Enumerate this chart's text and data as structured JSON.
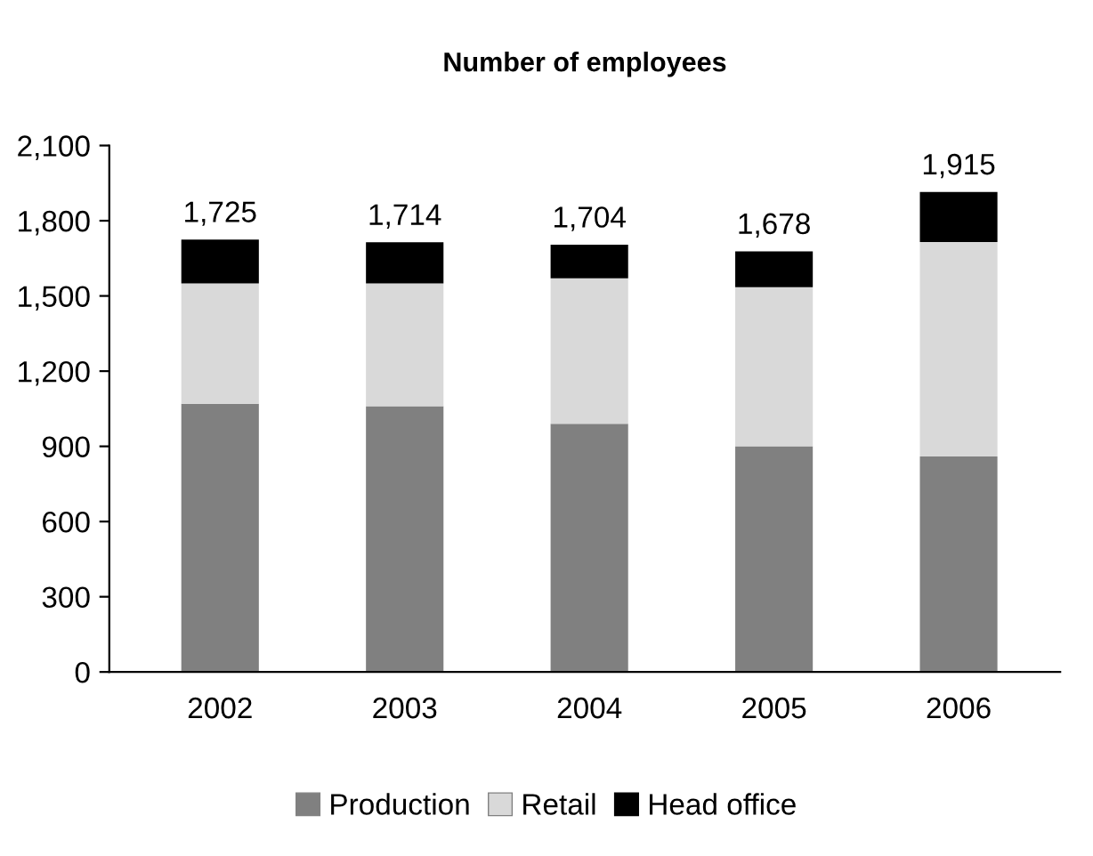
{
  "chart_data": {
    "type": "bar",
    "title": "Number of employees",
    "categories": [
      "2002",
      "2003",
      "2004",
      "2005",
      "2006"
    ],
    "stacked": true,
    "series": [
      {
        "name": "Production",
        "color": "#808080",
        "values": [
          1070,
          1060,
          990,
          900,
          860
        ]
      },
      {
        "name": "Retail",
        "color": "#d9d9d9",
        "values": [
          480,
          490,
          580,
          635,
          855
        ]
      },
      {
        "name": "Head office",
        "color": "#000000",
        "values": [
          175,
          164,
          134,
          143,
          200
        ]
      }
    ],
    "totals": [
      "1,725",
      "1,714",
      "1,704",
      "1,678",
      "1,915"
    ],
    "ylim": [
      0,
      2100
    ],
    "yticks": [
      {
        "value": 0,
        "label": "0"
      },
      {
        "value": 300,
        "label": "300"
      },
      {
        "value": 600,
        "label": "600"
      },
      {
        "value": 900,
        "label": "900"
      },
      {
        "value": 1200,
        "label": "1,200"
      },
      {
        "value": 1500,
        "label": "1,500"
      },
      {
        "value": 1800,
        "label": "1,800"
      },
      {
        "value": 2100,
        "label": "2,100"
      }
    ],
    "grid": false,
    "legend": "bottom"
  }
}
